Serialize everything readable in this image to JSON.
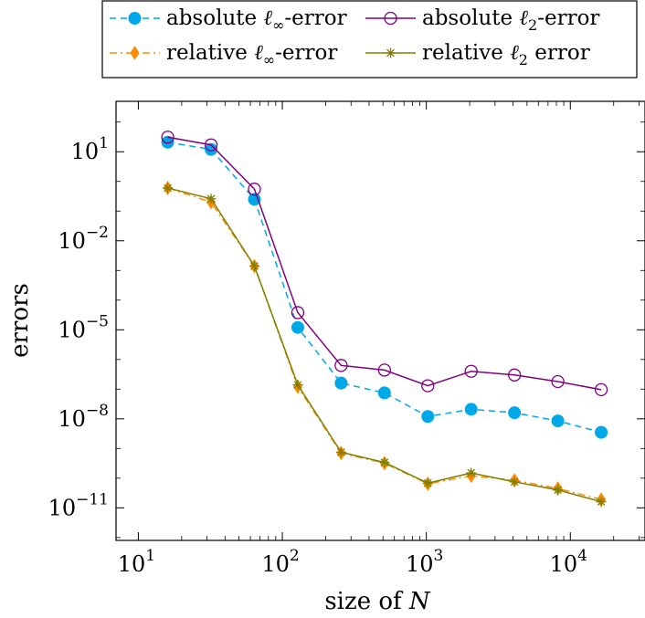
{
  "chart_data": {
    "type": "line",
    "xlabel": "size of N",
    "ylabel": "errors",
    "x_scale": "log",
    "y_scale": "log",
    "xlim": [
      7.0,
      33000
    ],
    "ylim": [
      8e-13,
      500
    ],
    "x_ticks": [
      {
        "value": 10,
        "base": "10",
        "exp": "1"
      },
      {
        "value": 100,
        "base": "10",
        "exp": "2"
      },
      {
        "value": 1000,
        "base": "10",
        "exp": "3"
      },
      {
        "value": 10000,
        "base": "10",
        "exp": "4"
      }
    ],
    "y_ticks": [
      {
        "value": 10,
        "base": "10",
        "exp": "1"
      },
      {
        "value": 0.01,
        "base": "10",
        "exp": "−2"
      },
      {
        "value": 1e-05,
        "base": "10",
        "exp": "−5"
      },
      {
        "value": 1e-08,
        "base": "10",
        "exp": "−8"
      },
      {
        "value": 1e-11,
        "base": "10",
        "exp": "−11"
      }
    ],
    "legend_position": "top-outside",
    "x": [
      16,
      32,
      64,
      128,
      256,
      512,
      1024,
      2048,
      4096,
      8192,
      16384
    ],
    "series": [
      {
        "name": "absolute ℓ∞-error",
        "color": "#00a8e8",
        "style": "dashed",
        "marker": "filled-circle",
        "values": [
          21,
          12,
          0.25,
          1.2e-05,
          1.6e-07,
          7.5e-08,
          1.2e-08,
          2.1e-08,
          1.6e-08,
          8.5e-09,
          3.5e-09
        ]
      },
      {
        "name": "absolute ℓ2-error",
        "color": "#800080",
        "style": "solid",
        "marker": "open-circle",
        "values": [
          31,
          17,
          0.55,
          3.8e-05,
          6.3e-07,
          4.4e-07,
          1.3e-07,
          4e-07,
          3e-07,
          1.8e-07,
          9.6e-08
        ]
      },
      {
        "name": "relative ℓ∞-error",
        "color": "#ff8c00",
        "style": "dashdot",
        "marker": "diamond",
        "values": [
          0.6,
          0.2,
          0.0014,
          1.2e-07,
          7e-10,
          3.2e-10,
          6.5e-11,
          1.2e-10,
          8.5e-11,
          4.5e-11,
          1.9e-11
        ]
      },
      {
        "name": "relative ℓ2 error",
        "color": "#808000",
        "style": "solid",
        "marker": "star",
        "values": [
          0.6,
          0.26,
          0.0014,
          1.4e-07,
          7.5e-10,
          3.4e-10,
          6.8e-11,
          1.5e-10,
          7.5e-11,
          4e-11,
          1.6e-11
        ]
      }
    ],
    "legend_items": [
      {
        "prefix": "absolute ",
        "sym": "ℓ",
        "sub": "∞",
        "suffix": "-error"
      },
      {
        "prefix": "absolute ",
        "sym": "ℓ",
        "sub": "2",
        "suffix": "-error"
      },
      {
        "prefix": "relative ",
        "sym": "ℓ",
        "sub": "∞",
        "suffix": "-error"
      },
      {
        "prefix": "relative ",
        "sym": "ℓ",
        "sub": "2",
        "suffix": " error"
      }
    ],
    "grid": false
  }
}
